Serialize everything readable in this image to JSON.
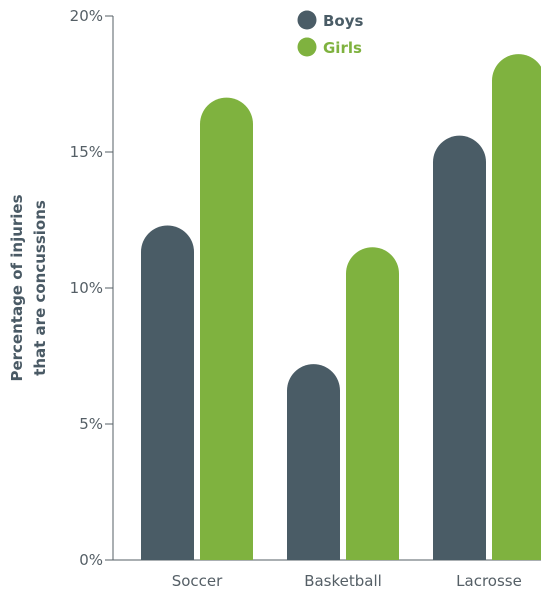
{
  "chart_data": {
    "type": "bar",
    "categories": [
      "Soccer",
      "Basketball",
      "Lacrosse"
    ],
    "series": [
      {
        "name": "Boys",
        "values": [
          12.3,
          7.2,
          15.6
        ],
        "color": "#4a5c66"
      },
      {
        "name": "Girls",
        "values": [
          17.0,
          11.5,
          18.6
        ],
        "color": "#7fb23f"
      }
    ],
    "ylabel_lines": [
      "Percentage of injuries",
      "that are concussions"
    ],
    "xlabel": "",
    "ylim": [
      0,
      20
    ],
    "yticks": [
      {
        "value": 0,
        "label": "0%"
      },
      {
        "value": 5,
        "label": "5%"
      },
      {
        "value": 10,
        "label": "10%"
      },
      {
        "value": 15,
        "label": "15%"
      },
      {
        "value": 20,
        "label": "20%"
      }
    ],
    "legend": {
      "placement": "top-center"
    },
    "grid": false,
    "bar_shape": "rounded-top"
  }
}
